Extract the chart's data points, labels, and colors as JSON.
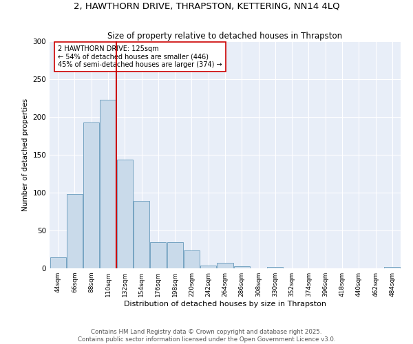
{
  "title1": "2, HAWTHORN DRIVE, THRAPSTON, KETTERING, NN14 4LQ",
  "title2": "Size of property relative to detached houses in Thrapston",
  "xlabel": "Distribution of detached houses by size in Thrapston",
  "ylabel": "Number of detached properties",
  "bar_color": "#c9daea",
  "bar_edge_color": "#6699bb",
  "background_color": "#e8eef8",
  "categories": [
    "44sqm",
    "66sqm",
    "88sqm",
    "110sqm",
    "132sqm",
    "154sqm",
    "176sqm",
    "198sqm",
    "220sqm",
    "242sqm",
    "264sqm",
    "286sqm",
    "308sqm",
    "330sqm",
    "352sqm",
    "374sqm",
    "396sqm",
    "418sqm",
    "440sqm",
    "462sqm",
    "484sqm"
  ],
  "values": [
    15,
    98,
    193,
    223,
    144,
    89,
    35,
    35,
    24,
    4,
    7,
    3,
    0,
    2,
    0,
    0,
    0,
    0,
    0,
    0,
    2
  ],
  "vline_x": 3.5,
  "vline_color": "#cc0000",
  "annotation_text": "2 HAWTHORN DRIVE: 125sqm\n← 54% of detached houses are smaller (446)\n45% of semi-detached houses are larger (374) →",
  "ylim": [
    0,
    300
  ],
  "yticks": [
    0,
    50,
    100,
    150,
    200,
    250,
    300
  ],
  "footer1": "Contains HM Land Registry data © Crown copyright and database right 2025.",
  "footer2": "Contains public sector information licensed under the Open Government Licence v3.0."
}
